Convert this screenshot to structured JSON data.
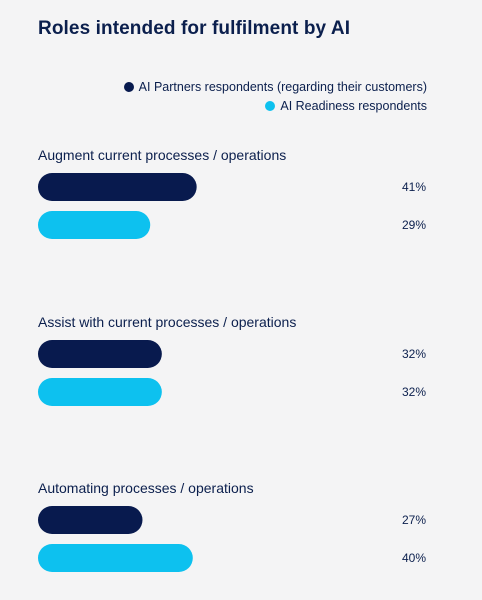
{
  "chart_data": {
    "type": "bar",
    "orientation": "horizontal",
    "title": "Roles intended for fulfilment by AI",
    "xlim": [
      0,
      100
    ],
    "grid": false,
    "legend_position": "top-right",
    "categories": [
      "Augment current processes / operations",
      "Assist with current processes / operations",
      "Automating processes / operations"
    ],
    "series": [
      {
        "name": "AI Partners respondents (regarding their customers)",
        "color": "#081a4e",
        "values": [
          41,
          32,
          27
        ],
        "labels": [
          "41%",
          "32%",
          "27%"
        ]
      },
      {
        "name": "AI Readiness respondents",
        "color": "#0dc1ef",
        "values": [
          29,
          32,
          40
        ],
        "labels": [
          "29%",
          "32%",
          "40%"
        ]
      }
    ]
  }
}
